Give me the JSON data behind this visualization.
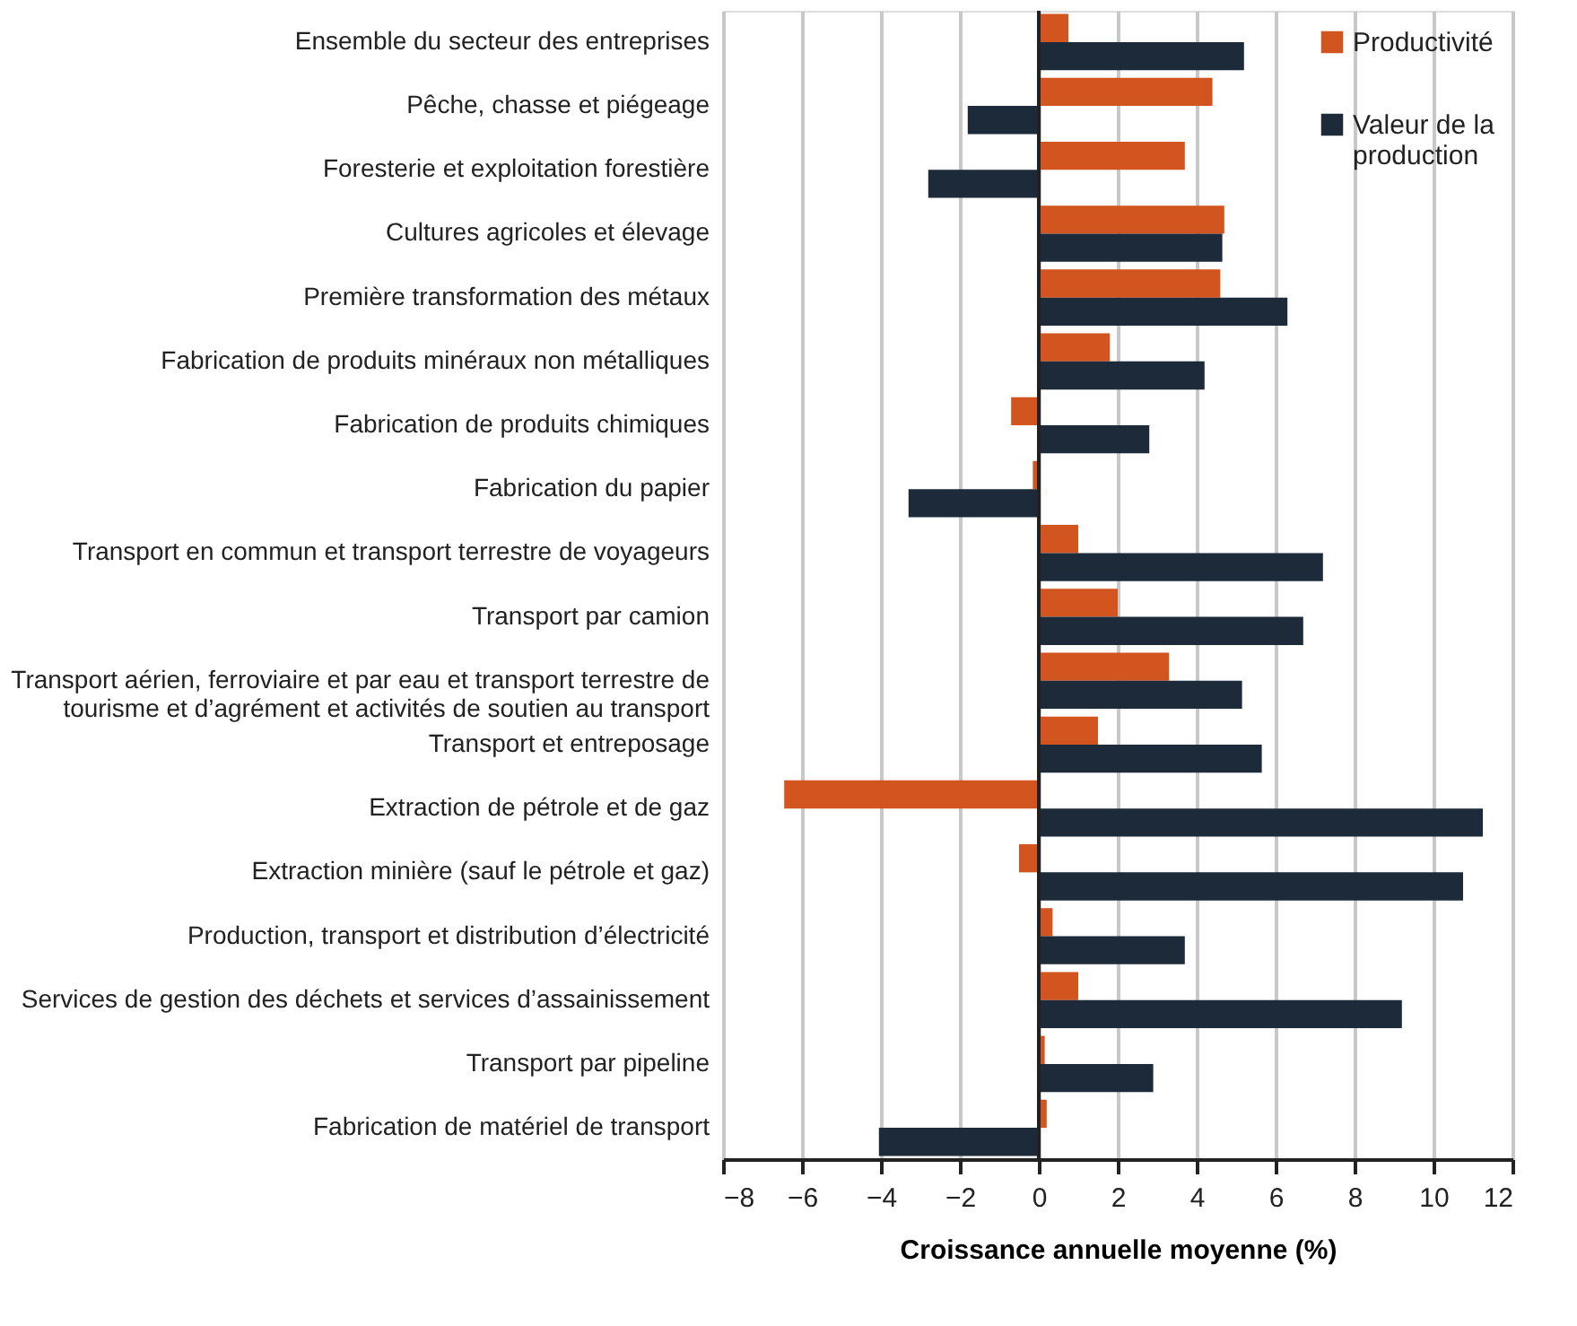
{
  "chart_data": {
    "type": "bar",
    "orientation": "horizontal",
    "xlabel": "Croissance annuelle moyenne (%)",
    "categories": [
      "Ensemble du secteur des entreprises",
      "Pêche, chasse et piégeage",
      "Foresterie et exploitation forestière",
      "Cultures agricoles et élevage",
      "Première transformation des métaux",
      "Fabrication de produits minéraux non métalliques",
      "Fabrication de produits chimiques",
      "Fabrication du papier",
      "Transport en commun et transport terrestre de voyageurs",
      "Transport par camion",
      "Transport aérien, ferroviaire et par eau et transport terrestre de tourisme et d’agrément et activités de soutien au transport",
      "Transport et entreposage",
      "Extraction de pétrole et de gaz",
      "Extraction minière (sauf le pétrole et gaz)",
      "Production, transport et distribution d’électricité",
      "Services de gestion des déchets et services d’assainissement",
      "Transport par pipeline",
      "Fabrication de matériel de transport"
    ],
    "series": [
      {
        "name": "Productivité",
        "color": "#d2541f",
        "values": [
          0.75,
          4.4,
          3.7,
          4.7,
          4.6,
          1.8,
          -0.7,
          -0.15,
          1.0,
          2.0,
          3.3,
          1.5,
          -6.45,
          -0.5,
          0.35,
          1.0,
          0.15,
          0.2
        ]
      },
      {
        "name": "Valeur de la production",
        "color": "#1c2a3a",
        "values": [
          5.2,
          -1.8,
          -2.8,
          4.65,
          6.3,
          4.2,
          2.8,
          -3.3,
          7.2,
          6.7,
          5.15,
          5.65,
          11.25,
          10.75,
          3.7,
          9.2,
          2.9,
          -4.05
        ]
      }
    ],
    "xlim": [
      -8,
      12
    ],
    "xticks": [
      -8,
      -6,
      -4,
      -2,
      0,
      2,
      4,
      6,
      8,
      10,
      12
    ],
    "grid": "x",
    "legend": "top right"
  }
}
